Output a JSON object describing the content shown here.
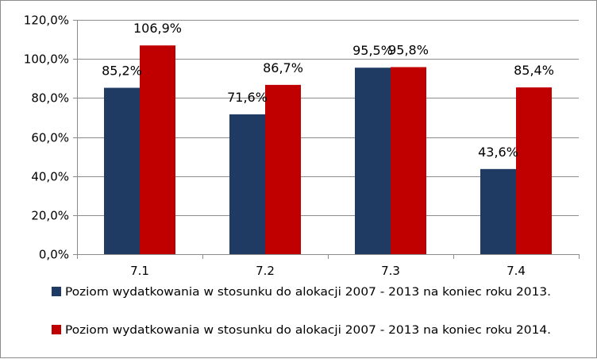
{
  "chart_data": {
    "type": "bar",
    "categories": [
      "7.1",
      "7.2",
      "7.3",
      "7.4"
    ],
    "series": [
      {
        "name": "Poziom wydatkowania w stosunku  do alokacji 2007 - 2013 na koniec roku 2013.",
        "values": [
          85.2,
          71.6,
          95.5,
          43.6
        ],
        "labels": [
          "85,2%",
          "71,6%",
          "95,5%",
          "43,6%"
        ],
        "color": "#1f3b63"
      },
      {
        "name": "Poziom wydatkowania w stosunku  do alokacji 2007 - 2013 na koniec roku 2014.",
        "values": [
          106.9,
          86.7,
          95.8,
          85.4
        ],
        "labels": [
          "106,9%",
          "86,7%",
          "95,8%",
          "85,4%"
        ],
        "color": "#c00000"
      }
    ],
    "ylim": [
      0,
      120
    ],
    "yticks": [
      0,
      20,
      40,
      60,
      80,
      100,
      120
    ],
    "ytick_labels": [
      "0,0%",
      "20,0%",
      "40,0%",
      "60,0%",
      "80,0%",
      "100,0%",
      "120,0%"
    ],
    "grid": true,
    "legend_position": "bottom"
  }
}
